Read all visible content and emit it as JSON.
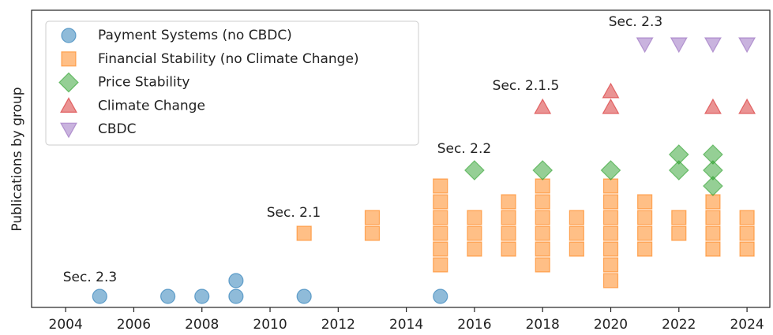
{
  "chart_data": {
    "type": "scatter",
    "ylabel": "Publications by group",
    "xlim": [
      2003.0,
      2024.67
    ],
    "xticks": [
      2004,
      2006,
      2008,
      2010,
      2012,
      2014,
      2016,
      2018,
      2020,
      2022,
      2024
    ],
    "ylim": [
      -0.7,
      18.15
    ],
    "legend": "upper left",
    "annotations": [
      "Sec. 2.3",
      "Sec. 2.1",
      "Sec. 2.2",
      "Sec. 2.1.5",
      "Sec. 2.3"
    ],
    "series": [
      {
        "name": "Payment Systems (no CBDC)",
        "color": "#1f77b4",
        "marker": "circle",
        "x": [
          2005,
          2007,
          2008,
          2009,
          2009,
          2011,
          2015
        ],
        "y": [
          0,
          0,
          0,
          0,
          1,
          0,
          0
        ]
      },
      {
        "name": "Financial Stability (no Climate Change)",
        "color": "#ff7f0e",
        "marker": "square",
        "x": [
          2011,
          2013,
          2013,
          2015,
          2015,
          2015,
          2015,
          2015,
          2015,
          2016,
          2016,
          2016,
          2017,
          2017,
          2017,
          2017,
          2018,
          2018,
          2018,
          2018,
          2018,
          2018,
          2019,
          2019,
          2019,
          2020,
          2020,
          2020,
          2020,
          2020,
          2020,
          2020,
          2021,
          2021,
          2021,
          2021,
          2022,
          2022,
          2023,
          2023,
          2023,
          2023,
          2024,
          2024,
          2024
        ],
        "y": [
          4,
          4,
          5,
          2,
          3,
          4,
          5,
          6,
          7,
          3,
          4,
          5,
          3,
          4,
          5,
          6,
          2,
          3,
          4,
          5,
          6,
          7,
          3,
          4,
          5,
          1,
          2,
          3,
          4,
          5,
          6,
          7,
          3,
          4,
          5,
          6,
          4,
          5,
          3,
          4,
          5,
          6,
          3,
          4,
          5
        ]
      },
      {
        "name": "Price Stability",
        "color": "#2ca02c",
        "marker": "diamond",
        "x": [
          2016,
          2018,
          2020,
          2022,
          2022,
          2023,
          2023,
          2023
        ],
        "y": [
          8,
          8,
          8,
          8,
          9,
          7,
          8,
          9
        ]
      },
      {
        "name": "Climate Change",
        "color": "#d62728",
        "marker": "triangle-up",
        "x": [
          2018,
          2020,
          2020,
          2023,
          2024
        ],
        "y": [
          12,
          12,
          13,
          12,
          12
        ]
      },
      {
        "name": "CBDC",
        "color": "#9467bd",
        "marker": "triangle-down",
        "x": [
          2021,
          2022,
          2023,
          2024
        ],
        "y": [
          16,
          16,
          16,
          16
        ]
      }
    ]
  }
}
